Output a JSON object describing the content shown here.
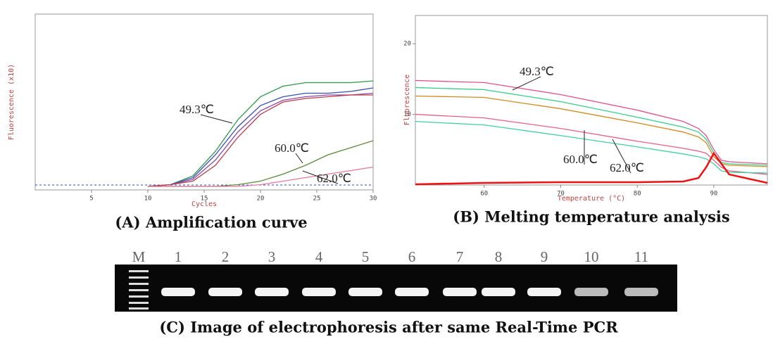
{
  "chart_data": [
    {
      "type": "line",
      "title": "(A) Amplification curve",
      "x_label": "Cycles",
      "y_label": "Fluorescence (x10)",
      "x": [
        10,
        12,
        14,
        16,
        18,
        20,
        22,
        24,
        26,
        28,
        30
      ],
      "series": [
        {
          "color": "#2e9a4a",
          "values": [
            0.2,
            0.3,
            0.8,
            2.2,
            4.0,
            5.3,
            5.9,
            6.1,
            6.1,
            6.1,
            6.2
          ]
        },
        {
          "color": "#3a4fb0",
          "values": [
            0.2,
            0.3,
            0.7,
            2.0,
            3.6,
            4.8,
            5.3,
            5.5,
            5.5,
            5.6,
            5.8
          ]
        },
        {
          "color": "#8a4aa8",
          "values": [
            0.2,
            0.3,
            0.6,
            1.7,
            3.3,
            4.5,
            5.1,
            5.3,
            5.4,
            5.4,
            5.5
          ]
        },
        {
          "color": "#c0394a",
          "values": [
            0.2,
            0.3,
            0.5,
            1.4,
            3.0,
            4.3,
            5.0,
            5.2,
            5.3,
            5.4,
            5.4
          ]
        },
        {
          "color": "#5a8a3a",
          "values": [
            0.2,
            0.2,
            0.2,
            0.2,
            0.3,
            0.5,
            0.9,
            1.4,
            2.0,
            2.4,
            2.8
          ]
        },
        {
          "color": "#e07aa0",
          "values": [
            0.2,
            0.2,
            0.2,
            0.2,
            0.2,
            0.3,
            0.5,
            0.7,
            0.9,
            1.1,
            1.3
          ]
        }
      ],
      "xlim": [
        0,
        30
      ],
      "xticks": [
        5,
        10,
        15,
        20,
        25,
        30
      ],
      "ylim": [
        0,
        10
      ],
      "annotations": [
        "49.3℃",
        "60.0℃",
        "62.0℃"
      ]
    },
    {
      "type": "line",
      "title": "(B) Melting temperature analysis",
      "x_label": "Temperature (°C)",
      "y_label": "Fluorescence",
      "x": [
        51,
        60,
        70,
        80,
        86,
        88,
        89,
        90,
        91,
        92,
        97
      ],
      "series": [
        {
          "color": "#e0508a",
          "values": [
            14.8,
            14.5,
            12.8,
            10.6,
            9.0,
            8.0,
            7.0,
            5.0,
            3.5,
            3.3,
            3.0
          ]
        },
        {
          "color": "#33d08a",
          "values": [
            13.8,
            13.5,
            11.8,
            9.6,
            8.2,
            7.5,
            6.5,
            4.5,
            3.2,
            3.0,
            2.8
          ]
        },
        {
          "color": "#d08a20",
          "values": [
            12.6,
            12.4,
            10.8,
            8.8,
            7.5,
            6.8,
            6.0,
            4.0,
            3.0,
            2.8,
            2.6
          ]
        },
        {
          "color": "#e86080",
          "values": [
            10.0,
            9.5,
            8.0,
            6.2,
            5.2,
            4.8,
            4.5,
            3.5,
            2.5,
            2.0,
            1.5
          ]
        },
        {
          "color": "#40d0a0",
          "values": [
            9.0,
            8.5,
            7.0,
            5.4,
            4.4,
            4.0,
            3.7,
            3.0,
            2.0,
            1.8,
            1.7
          ]
        },
        {
          "color": "#ee1111",
          "values": [
            0.1,
            0.3,
            0.4,
            0.4,
            0.5,
            1.0,
            2.5,
            4.5,
            3.0,
            1.5,
            0.3
          ]
        }
      ],
      "xlim": [
        51,
        97
      ],
      "xticks": [
        60,
        70,
        80,
        90
      ],
      "ylim": [
        0,
        24
      ],
      "yticks": [
        10,
        20
      ],
      "annotations": [
        "49.3℃",
        "60.0℃",
        "62.0℃"
      ]
    }
  ],
  "gel": {
    "caption": "(C) Image of electrophoresis after same Real-Time PCR",
    "lanes": [
      "M",
      "1",
      "2",
      "3",
      "4",
      "5",
      "6",
      "7",
      "8",
      "9",
      "10",
      "11"
    ]
  }
}
